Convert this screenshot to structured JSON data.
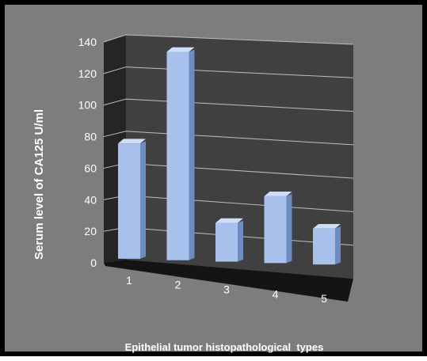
{
  "chart_data": {
    "type": "bar",
    "categories": [
      "1",
      "2",
      "3",
      "4",
      "5"
    ],
    "values": [
      75,
      135,
      25,
      43,
      23
    ],
    "title": "",
    "xlabel": "Epithelial tumor histopathological  types",
    "ylabel": "Serum level of CA125 U/ml",
    "ylim": [
      0,
      140
    ],
    "yticks": [
      "0",
      "20",
      "40",
      "60",
      "80",
      "100",
      "120",
      "140"
    ],
    "grid": true,
    "legend": "none",
    "style": "3d-column",
    "colors": {
      "background": "#7d7d7d",
      "plot_back_wall": "#404040",
      "plot_side_wall": "#252525",
      "floor": "#141414",
      "gridline": "#bdbdbd",
      "bar_front": "#a7c1ec",
      "bar_top": "#cfdef6",
      "bar_side": "#6d8cc2",
      "frame_border": "#000000"
    }
  }
}
